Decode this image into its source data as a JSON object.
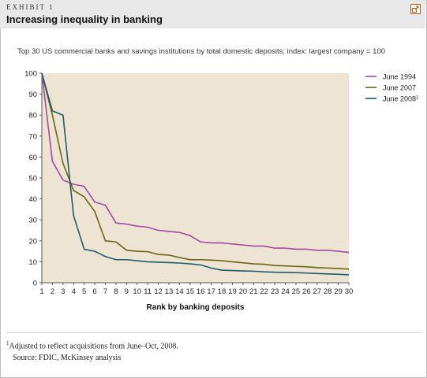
{
  "header": {
    "exhibit_label": "EXHIBIT 1",
    "title": "Increasing inequality in banking"
  },
  "chart_data": {
    "type": "line",
    "subtitle": "Top 30 US commercial banks and savings institutions by total domestic deposits; index: largest company = 100",
    "xlabel": "Rank by banking deposits",
    "ylabel": "",
    "x": [
      1,
      2,
      3,
      4,
      5,
      6,
      7,
      8,
      9,
      10,
      11,
      12,
      13,
      14,
      15,
      16,
      17,
      18,
      19,
      20,
      21,
      22,
      23,
      24,
      25,
      26,
      27,
      28,
      29,
      30
    ],
    "ylim": [
      0,
      100
    ],
    "yticks": [
      0,
      10,
      20,
      30,
      40,
      50,
      60,
      70,
      80,
      90,
      100
    ],
    "grid": false,
    "legend_position": "right",
    "series": [
      {
        "name": "June 1994",
        "color": "#a14aa8",
        "values": [
          100,
          58,
          49,
          47,
          46,
          38.5,
          37,
          28.5,
          28,
          27,
          26.5,
          25,
          24.5,
          24,
          22.5,
          19.5,
          19,
          19,
          18.5,
          18,
          17.5,
          17.5,
          16.5,
          16.5,
          16,
          16,
          15.5,
          15.5,
          15,
          14.5
        ]
      },
      {
        "name": "June 2007",
        "color": "#6b6412",
        "values": [
          100,
          80,
          57,
          44,
          41,
          34,
          20,
          19.5,
          15.5,
          15,
          14.8,
          13.5,
          13.2,
          12,
          11,
          11,
          10.8,
          10.5,
          10,
          9.5,
          9,
          8.8,
          8.2,
          8,
          7.8,
          7.6,
          7.2,
          7,
          6.8,
          6.5
        ]
      },
      {
        "name": "June 2008",
        "name_sup": "1",
        "color": "#1c5c6b",
        "values": [
          100,
          82,
          80,
          32,
          16,
          15,
          12.5,
          11,
          11,
          10.5,
          10,
          9.8,
          9.6,
          9.4,
          9,
          8.5,
          7,
          6,
          5.8,
          5.6,
          5.5,
          5.2,
          5,
          4.9,
          4.8,
          4.6,
          4.4,
          4.2,
          4,
          3.8
        ]
      }
    ]
  },
  "footnote": {
    "marker": "1",
    "text": "Adjusted to reflect acquisitions from June–Oct, 2008."
  },
  "source": "Source: FDIC, McKinsey analysis",
  "colors": {
    "plot_background": "#ede4d4",
    "header_background": "#e8e8e8",
    "expand_icon_border": "#c05a14"
  }
}
